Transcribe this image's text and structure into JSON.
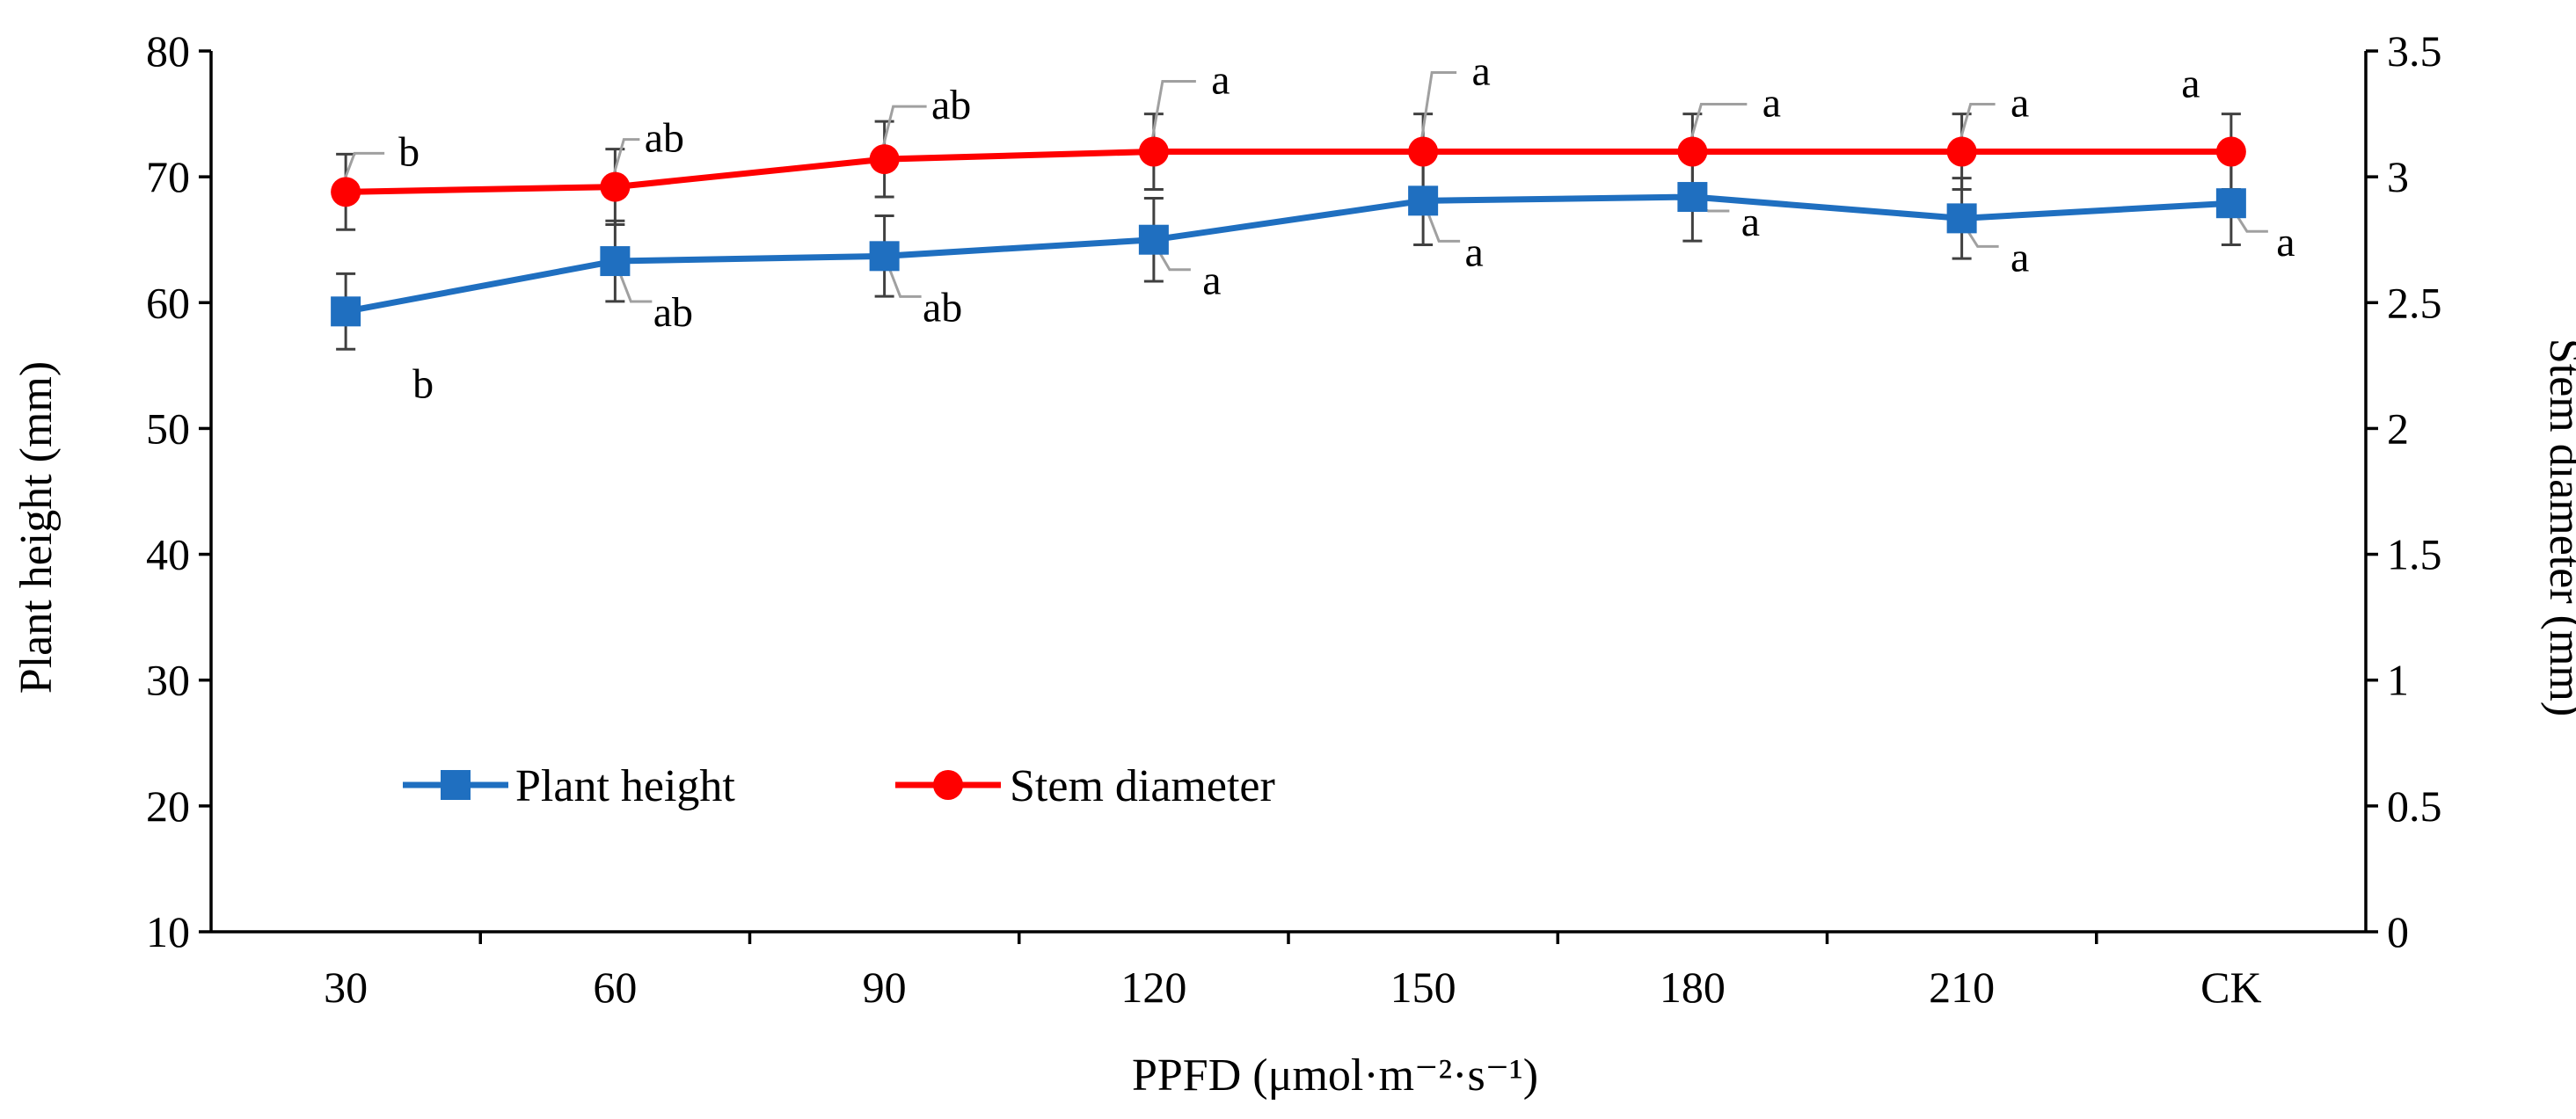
{
  "chart_data": {
    "type": "line",
    "categories": [
      "30",
      "60",
      "90",
      "120",
      "150",
      "180",
      "210",
      "CK"
    ],
    "xlabel": "PPFD (μmol·m⁻²·s⁻¹)",
    "ylabel": "Plant height (mm)",
    "y2label": "Stem diameter (mm)",
    "ylim": [
      10,
      80
    ],
    "yticks": [
      "10",
      "20",
      "30",
      "40",
      "50",
      "60",
      "70",
      "80"
    ],
    "y2lim": [
      0,
      3.5
    ],
    "y2ticks": [
      "0",
      "0.5",
      "1",
      "1.5",
      "2",
      "2.5",
      "3",
      "3.5"
    ],
    "grid": false,
    "legend_position": "lower-left inside plot",
    "series": [
      {
        "name": "Plant height",
        "axis": "left",
        "color": "#1F6FC0",
        "marker": "square",
        "values": [
          59.3,
          63.3,
          63.7,
          65.0,
          68.1,
          68.4,
          66.7,
          67.9
        ],
        "errors": [
          3.0,
          3.2,
          3.2,
          3.3,
          3.5,
          3.5,
          3.2,
          3.3
        ],
        "letters": [
          "b",
          "ab",
          "ab",
          "a",
          "a",
          "a",
          "a",
          "a"
        ]
      },
      {
        "name": "Stem diameter",
        "axis": "right",
        "color": "#FF0000",
        "marker": "circle",
        "values": [
          2.94,
          2.96,
          3.07,
          3.1,
          3.1,
          3.1,
          3.1,
          3.1
        ],
        "errors": [
          0.15,
          0.15,
          0.15,
          0.15,
          0.15,
          0.15,
          0.15,
          0.15
        ],
        "letters": [
          "b",
          "ab",
          "ab",
          "a",
          "a",
          "a",
          "a",
          "a"
        ]
      }
    ]
  }
}
